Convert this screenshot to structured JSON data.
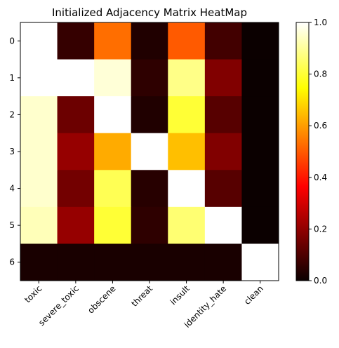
{
  "chart_data": {
    "type": "heatmap",
    "title": "Initialized Adjacency Matrix HeatMap",
    "x_categories": [
      "toxic",
      "severe_toxic",
      "obscene",
      "threat",
      "insult",
      "identity_hate",
      "clean"
    ],
    "y_categories": [
      "0",
      "1",
      "2",
      "3",
      "4",
      "5",
      "6"
    ],
    "matrix": [
      [
        1.0,
        0.06,
        0.53,
        0.03,
        0.5,
        0.08,
        0.0
      ],
      [
        1.0,
        1.0,
        0.96,
        0.05,
        0.88,
        0.17,
        0.0
      ],
      [
        0.95,
        0.14,
        1.0,
        0.03,
        0.8,
        0.11,
        0.0
      ],
      [
        0.95,
        0.2,
        0.62,
        1.0,
        0.65,
        0.17,
        0.0
      ],
      [
        0.95,
        0.15,
        0.83,
        0.04,
        1.0,
        0.11,
        0.0
      ],
      [
        0.93,
        0.2,
        0.8,
        0.05,
        0.86,
        1.0,
        0.0
      ],
      [
        0.02,
        0.02,
        0.02,
        0.02,
        0.02,
        0.02,
        1.0
      ]
    ],
    "colormap": "hot",
    "vmin": 0.0,
    "vmax": 1.0,
    "colorbar_ticks": [
      "0.0",
      "0.2",
      "0.4",
      "0.6",
      "0.8",
      "1.0"
    ],
    "xlabel": "",
    "ylabel": "",
    "grid": false
  }
}
